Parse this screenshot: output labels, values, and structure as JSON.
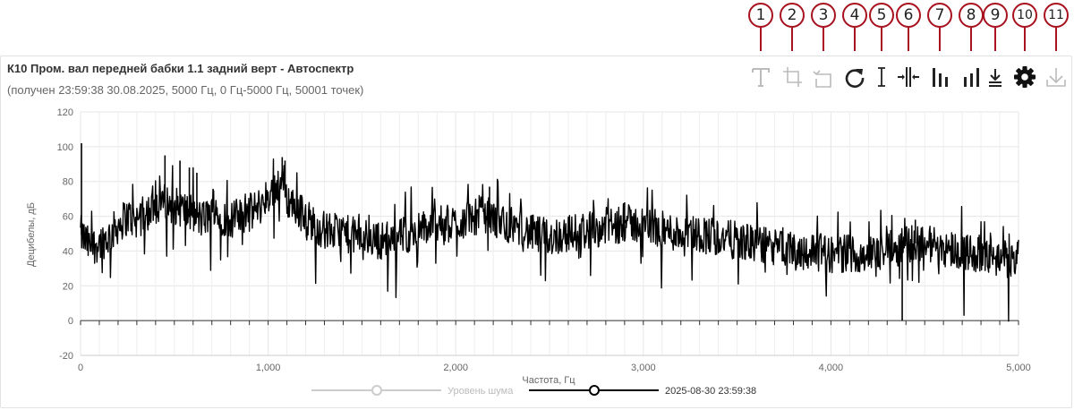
{
  "header": {
    "title": "К10 Пром. вал передней бабки 1.1 задний верт - Автоспектр",
    "subtitle": "(получен 23:59:38 30.08.2025, 5000 Гц, 0 Гц-5000 Гц, 50001 точек)"
  },
  "toolbar": {
    "callouts": [
      "1",
      "2",
      "3",
      "4",
      "5",
      "6",
      "7",
      "8",
      "9",
      "10",
      "11"
    ],
    "tools": [
      {
        "icon": "text-t-icon",
        "enabled": false
      },
      {
        "icon": "crop-zoom-icon",
        "enabled": false
      },
      {
        "icon": "zoom-back-icon",
        "enabled": false
      },
      {
        "icon": "reset-refresh-icon",
        "enabled": true
      },
      {
        "icon": "cursor-i-beam-icon",
        "enabled": true
      },
      {
        "icon": "harmonic-cursor-icon",
        "enabled": true
      },
      {
        "icon": "harmonics-bars-icon",
        "enabled": true
      },
      {
        "icon": "sidebands-bars-icon",
        "enabled": true
      },
      {
        "icon": "baseline-icon",
        "enabled": true
      },
      {
        "icon": "gear-icon",
        "enabled": true
      },
      {
        "icon": "download-icon",
        "enabled": false
      }
    ],
    "callout_color": "#a8111e"
  },
  "chart_data": {
    "type": "line",
    "xlabel": "Частота, Гц",
    "ylabel": "Децибелы, дБ",
    "xlim": [
      0,
      5000
    ],
    "ylim": [
      -20,
      120
    ],
    "x_ticks": [
      "0",
      "1,000",
      "2,000",
      "3,000",
      "4,000",
      "5,000"
    ],
    "y_ticks": [
      "-20",
      "0",
      "20",
      "40",
      "60",
      "80",
      "100",
      "120"
    ],
    "grid": true,
    "legend_position": "bottom",
    "series": [
      {
        "name": "Уровень шума",
        "color": "#cccccc",
        "visible": false,
        "x": [],
        "y": []
      },
      {
        "name": "2025-08-30 23:59:38",
        "color": "#000000",
        "visible": true,
        "x": [
          0,
          50,
          100,
          150,
          200,
          250,
          300,
          350,
          400,
          450,
          500,
          550,
          600,
          650,
          700,
          750,
          800,
          850,
          900,
          950,
          1000,
          1050,
          1080,
          1100,
          1150,
          1200,
          1250,
          1300,
          1400,
          1500,
          1600,
          1700,
          1800,
          1900,
          2000,
          2100,
          2150,
          2200,
          2300,
          2400,
          2500,
          2600,
          2700,
          2800,
          2900,
          3000,
          3100,
          3200,
          3300,
          3400,
          3500,
          3600,
          3700,
          3800,
          3900,
          4000,
          4100,
          4200,
          4300,
          4400,
          4500,
          4600,
          4700,
          4800,
          4900,
          5000
        ],
        "y": [
          50,
          42,
          45,
          48,
          55,
          60,
          58,
          62,
          65,
          68,
          66,
          64,
          60,
          58,
          62,
          60,
          58,
          60,
          62,
          65,
          72,
          78,
          82,
          70,
          65,
          60,
          55,
          52,
          50,
          48,
          46,
          48,
          52,
          55,
          56,
          60,
          62,
          58,
          55,
          50,
          48,
          50,
          52,
          54,
          56,
          55,
          52,
          50,
          50,
          48,
          46,
          44,
          42,
          40,
          40,
          38,
          39,
          38,
          40,
          44,
          45,
          42,
          40,
          38,
          36,
          35
        ],
        "peaks": [
          {
            "x": 5,
            "y": 102
          },
          {
            "x": 450,
            "y": 95
          },
          {
            "x": 530,
            "y": 92
          },
          {
            "x": 580,
            "y": 88
          },
          {
            "x": 620,
            "y": 85
          },
          {
            "x": 1075,
            "y": 94
          },
          {
            "x": 1090,
            "y": 92
          },
          {
            "x": 2180,
            "y": 77
          },
          {
            "x": 2900,
            "y": 68
          },
          {
            "x": 4380,
            "y": 0
          },
          {
            "x": 4450,
            "y": 58
          }
        ]
      }
    ]
  },
  "legend": {
    "noise_label": "Уровень шума",
    "series_label": "2025-08-30 23:59:38"
  }
}
